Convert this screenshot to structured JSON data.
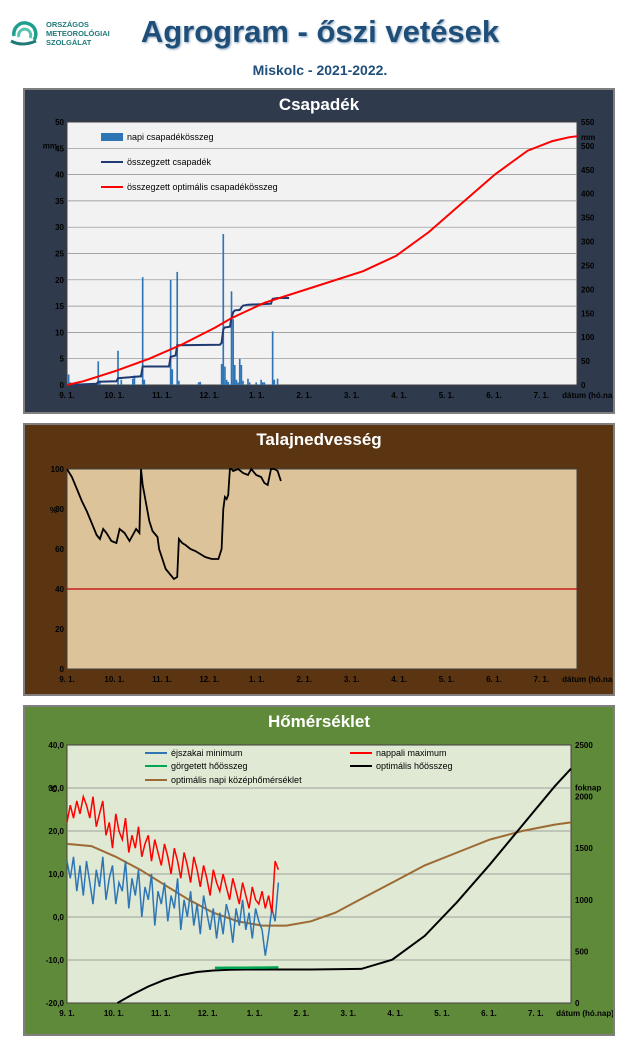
{
  "header": {
    "logo_lines": [
      "ORSZÁGOS",
      "METEOROLÓGIAI",
      "SZOLGÁLAT"
    ],
    "title": "Agrogram - őszi vetések",
    "subtitle": "Miskolc - 2021-2022."
  },
  "colors": {
    "panel1_bg": "#2f3a4d",
    "panel1_plot": "#f2f2f2",
    "panel2_bg": "#5b3512",
    "panel2_plot": "#ddc39a",
    "panel3_bg": "#5f8a3a",
    "panel3_plot": "#dfe9d4",
    "daily_bar": "#2e75b6",
    "cumulative": "#1f3a73",
    "optimal": "#ff0000",
    "moisture": "#000000",
    "threshold": "#c00000",
    "tmin": "#2e75b6",
    "tmax": "#ff0000",
    "rolling": "#00a651",
    "opt_sum": "#000000",
    "opt_mean": "#9c6a32"
  },
  "chart_data": [
    {
      "type": "bar",
      "title": "Csapadék",
      "ylabel": "mm",
      "y2label": "mm",
      "xlabel": "dátum (hó.nap)",
      "xticks": [
        "9. 1.",
        "10. 1.",
        "11. 1.",
        "12. 1.",
        "1. 1.",
        "2. 1.",
        "3. 1.",
        "4. 1.",
        "5. 1.",
        "6. 1.",
        "7. 1."
      ],
      "ylim": [
        0,
        50
      ],
      "yticks": [
        0,
        5,
        10,
        15,
        20,
        25,
        30,
        35,
        40,
        45,
        50
      ],
      "y2lim": [
        0,
        550
      ],
      "y2ticks": [
        0,
        50,
        100,
        150,
        200,
        250,
        300,
        350,
        400,
        450,
        500,
        550
      ],
      "x_days_range": [
        0,
        310
      ],
      "legend": [
        "napi csapadékösszeg",
        "összegzett csapadék",
        "összegzett optimális csapadékösszeg"
      ],
      "series": [
        {
          "name": "napi csapadékösszeg",
          "type": "bar",
          "x_days": [
            1,
            2,
            19,
            20,
            31,
            33,
            40,
            41,
            46,
            47,
            63,
            64,
            67,
            68,
            80,
            81,
            94,
            95,
            96,
            97,
            98,
            100,
            101,
            102,
            103,
            104,
            105,
            106,
            107,
            110,
            111,
            115,
            118,
            119,
            120,
            125,
            126,
            128
          ],
          "values": [
            2.0,
            0.5,
            4.5,
            0.8,
            6.5,
            1.0,
            1.2,
            1.8,
            20.5,
            1.0,
            20.0,
            3.0,
            21.5,
            0.8,
            0.5,
            0.6,
            4.0,
            28.7,
            3.5,
            1.0,
            0.6,
            17.8,
            12.5,
            3.8,
            1.0,
            0.5,
            5.0,
            3.8,
            0.8,
            1.2,
            0.5,
            0.5,
            1.0,
            0.5,
            0.5,
            10.2,
            1.0,
            1.2
          ]
        },
        {
          "name": "összegzett csapadék",
          "type": "line",
          "axis": "right",
          "x_days": [
            0,
            18,
            19,
            30,
            31,
            45,
            46,
            62,
            63,
            66,
            67,
            93,
            94,
            95,
            96,
            99,
            100,
            101,
            102,
            105,
            106,
            107,
            110,
            118,
            124,
            125,
            128,
            135
          ],
          "values": [
            0,
            2.5,
            7,
            7.8,
            14.3,
            18.2,
            38.7,
            38.7,
            58.7,
            61.7,
            83.2,
            84.3,
            88.3,
            117,
            120.5,
            122,
            139.8,
            152.3,
            156,
            157,
            162,
            165.8,
            168,
            169,
            170,
            180,
            182,
            182
          ]
        },
        {
          "name": "összegzett optimális csapadékösszeg",
          "type": "line",
          "axis": "right",
          "x_days": [
            0,
            10,
            30,
            50,
            70,
            90,
            100,
            120,
            150,
            180,
            200,
            220,
            240,
            260,
            280,
            295,
            305,
            310
          ],
          "values": [
            0,
            8,
            30,
            55,
            85,
            120,
            140,
            172,
            205,
            238,
            270,
            320,
            380,
            440,
            490,
            510,
            518,
            520
          ]
        }
      ]
    },
    {
      "type": "line",
      "title": "Talajnedvesség",
      "ylabel": "%",
      "xlabel": "dátum (hó.nap)",
      "xticks": [
        "9. 1.",
        "10. 1.",
        "11. 1.",
        "12. 1.",
        "1. 1.",
        "2. 1.",
        "3. 1.",
        "4. 1.",
        "5. 1.",
        "6. 1.",
        "7. 1."
      ],
      "ylim": [
        0,
        100
      ],
      "yticks": [
        0,
        20,
        40,
        60,
        80,
        100
      ],
      "x_days_range": [
        0,
        310
      ],
      "threshold": 40,
      "series": [
        {
          "name": "soil_moisture",
          "x_days": [
            0,
            3,
            6,
            9,
            12,
            15,
            18,
            20,
            22,
            24,
            27,
            30,
            32,
            35,
            38,
            42,
            44,
            45,
            46,
            48,
            50,
            52,
            54,
            55,
            56,
            58,
            60,
            62,
            64,
            65,
            67,
            68,
            70,
            72,
            75,
            78,
            80,
            84,
            88,
            92,
            94,
            95,
            96,
            97,
            98,
            99,
            100,
            101,
            104,
            107,
            110,
            112,
            115,
            118,
            120,
            122,
            124,
            126,
            128,
            130
          ],
          "values": [
            100,
            96,
            90,
            84,
            79,
            73,
            67,
            65,
            70,
            68,
            64,
            63,
            70,
            68,
            64,
            70,
            68,
            100,
            92,
            83,
            74,
            69,
            67,
            66,
            60,
            55,
            50,
            48,
            46,
            45,
            46,
            65,
            63,
            62,
            60,
            59,
            58,
            56,
            55,
            55,
            60,
            80,
            86,
            85,
            87,
            100,
            100,
            99,
            100,
            98,
            97,
            100,
            97,
            96,
            93,
            92,
            100,
            100,
            99,
            94
          ]
        }
      ]
    },
    {
      "type": "line",
      "title": "Hőmérséklet",
      "ylabel": "°C",
      "y2label": "foknap",
      "xlabel": "dátum (hó.nap)",
      "xticks": [
        "9. 1.",
        "10. 1.",
        "11. 1.",
        "12. 1.",
        "1. 1.",
        "2. 1.",
        "3. 1.",
        "4. 1.",
        "5. 1.",
        "6. 1.",
        "7. 1."
      ],
      "ylim": [
        -20,
        40
      ],
      "yticks": [
        -20,
        -10,
        0,
        10,
        20,
        30,
        40
      ],
      "ytick_labels": [
        "-20,0",
        "-10,0",
        "0,0",
        "10,0",
        "20,0",
        "30,0",
        "40,0"
      ],
      "y2lim": [
        0,
        2500
      ],
      "y2ticks": [
        0,
        500,
        1000,
        1500,
        2000,
        2500
      ],
      "x_days_range": [
        0,
        310
      ],
      "legend": [
        "éjszakai minimum",
        "nappali maximum",
        "görgetett hőösszeg",
        "optimális hőösszeg",
        "optimális napi középhőmérséklet"
      ],
      "series": [
        {
          "name": "éjszakai minimum",
          "x_days": [
            0,
            2,
            4,
            6,
            8,
            10,
            12,
            14,
            16,
            18,
            20,
            22,
            24,
            26,
            28,
            30,
            32,
            34,
            36,
            38,
            40,
            42,
            44,
            46,
            48,
            50,
            52,
            54,
            56,
            58,
            60,
            62,
            64,
            66,
            68,
            70,
            72,
            74,
            76,
            78,
            80,
            82,
            84,
            86,
            88,
            90,
            92,
            94,
            96,
            98,
            100,
            102,
            104,
            106,
            108,
            110,
            112,
            114,
            116,
            118,
            120,
            122,
            124,
            126,
            128,
            130
          ],
          "values": [
            13,
            9,
            14,
            6,
            12,
            5,
            13,
            8,
            3,
            11,
            7,
            14,
            4,
            9,
            12,
            3,
            8,
            6,
            13,
            2,
            9,
            5,
            11,
            0,
            7,
            4,
            10,
            -2,
            6,
            3,
            8,
            -1,
            5,
            2,
            9,
            -3,
            4,
            0,
            6,
            -2,
            3,
            -4,
            5,
            1,
            -3,
            2,
            -5,
            1,
            -4,
            3,
            0,
            -6,
            2,
            -2,
            4,
            -3,
            1,
            -5,
            2,
            -1,
            -3,
            -9,
            -4,
            2,
            -1,
            8
          ]
        },
        {
          "name": "nappali maximum",
          "x_days": [
            0,
            2,
            4,
            6,
            8,
            10,
            12,
            14,
            16,
            18,
            20,
            22,
            24,
            26,
            28,
            30,
            32,
            34,
            36,
            38,
            40,
            42,
            44,
            46,
            48,
            50,
            52,
            54,
            56,
            58,
            60,
            62,
            64,
            66,
            68,
            70,
            72,
            74,
            76,
            78,
            80,
            82,
            84,
            86,
            88,
            90,
            92,
            94,
            96,
            98,
            100,
            102,
            104,
            106,
            108,
            110,
            112,
            114,
            116,
            118,
            120,
            122,
            124,
            126,
            128,
            130
          ],
          "values": [
            22,
            26,
            23,
            27,
            24,
            28,
            26,
            23,
            28,
            21,
            24,
            27,
            19,
            22,
            16,
            24,
            20,
            18,
            23,
            15,
            19,
            16,
            21,
            14,
            17,
            19,
            13,
            18,
            15,
            12,
            17,
            14,
            10,
            16,
            13,
            9,
            15,
            12,
            8,
            14,
            11,
            7,
            12,
            9,
            5,
            11,
            8,
            6,
            10,
            7,
            4,
            9,
            6,
            3,
            8,
            5,
            2,
            7,
            4,
            3,
            6,
            2,
            5,
            1,
            13,
            11
          ]
        },
        {
          "name": "görgetett hőösszeg",
          "axis": "right",
          "x_days": [
            91,
            100,
            110,
            120,
            130
          ],
          "values": [
            340,
            342,
            342,
            343,
            345
          ]
        },
        {
          "name": "optimális hőösszeg",
          "axis": "right",
          "x_days": [
            31,
            40,
            50,
            60,
            70,
            80,
            90,
            100,
            110,
            120,
            150,
            181,
            200,
            220,
            240,
            260,
            280,
            300,
            310
          ],
          "values": [
            0,
            80,
            160,
            225,
            270,
            300,
            315,
            322,
            325,
            325,
            325,
            330,
            420,
            650,
            980,
            1340,
            1720,
            2100,
            2270
          ]
        },
        {
          "name": "optimális napi középhőmérséklet",
          "x_days": [
            0,
            15,
            30,
            45,
            60,
            75,
            90,
            105,
            120,
            135,
            150,
            165,
            180,
            200,
            220,
            240,
            260,
            280,
            300,
            310
          ],
          "values": [
            17,
            16.5,
            14,
            11,
            7.5,
            4,
            1,
            -1,
            -2,
            -2,
            -1,
            1,
            4,
            8,
            12,
            15,
            18,
            20,
            21.5,
            22
          ]
        }
      ]
    }
  ]
}
